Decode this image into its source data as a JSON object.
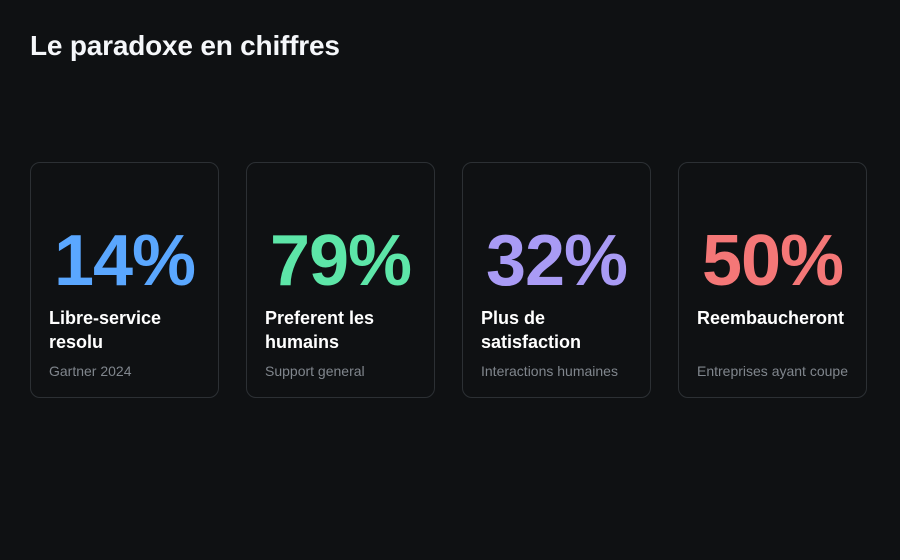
{
  "header": {
    "title": "Le paradoxe en chiffres"
  },
  "stats": [
    {
      "value": "14%",
      "label": "Libre-service resolu",
      "source": "Gartner 2024",
      "color": "#5aa7ff"
    },
    {
      "value": "79%",
      "label": "Preferent les humains",
      "source": "Support general",
      "color": "#5de6a8"
    },
    {
      "value": "32%",
      "label": "Plus de satisfaction",
      "source": "Interactions humaines",
      "color": "#a99bf5"
    },
    {
      "value": "50%",
      "label": "Reembaucheront",
      "source": "Entreprises ayant coupe",
      "color": "#f47777"
    }
  ]
}
